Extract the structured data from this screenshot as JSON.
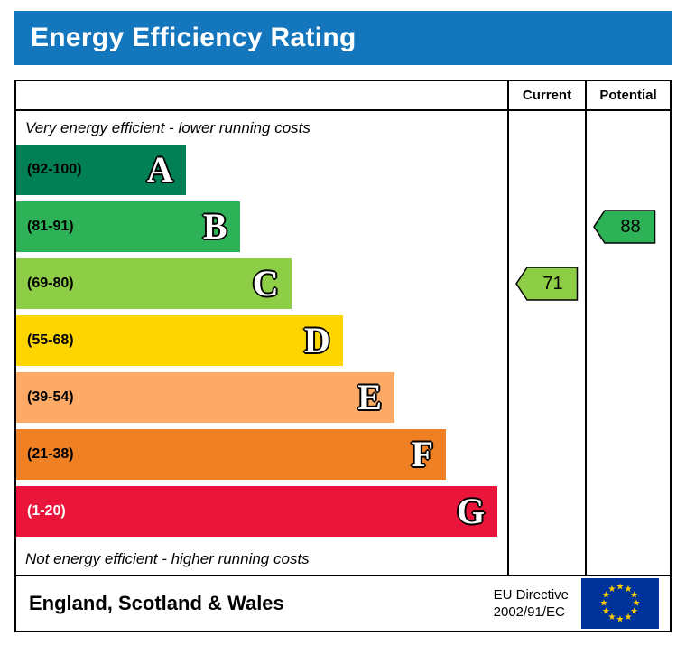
{
  "title": "Energy Efficiency Rating",
  "header": {
    "current_label": "Current",
    "potential_label": "Potential"
  },
  "notes": {
    "top": "Very energy efficient - lower running costs",
    "bottom": "Not energy efficient - higher running costs"
  },
  "chart_data": {
    "type": "bar",
    "title": "Energy Efficiency Rating",
    "categories": [
      "A",
      "B",
      "C",
      "D",
      "E",
      "F",
      "G"
    ],
    "bands": [
      {
        "letter": "A",
        "range": "(92-100)",
        "color": "#008054",
        "range_text_color": "#000000",
        "width_pct": 34.5
      },
      {
        "letter": "B",
        "range": "(81-91)",
        "color": "#2eb258",
        "range_text_color": "#000000",
        "width_pct": 45.5
      },
      {
        "letter": "C",
        "range": "(69-80)",
        "color": "#8dce46",
        "range_text_color": "#000000",
        "width_pct": 56
      },
      {
        "letter": "D",
        "range": "(55-68)",
        "color": "#ffd500",
        "range_text_color": "#000000",
        "width_pct": 66.5
      },
      {
        "letter": "E",
        "range": "(39-54)",
        "color": "#fcaa65",
        "range_text_color": "#000000",
        "width_pct": 77
      },
      {
        "letter": "F",
        "range": "(21-38)",
        "color": "#ef8023",
        "range_text_color": "#000000",
        "width_pct": 87.5
      },
      {
        "letter": "G",
        "range": "(1-20)",
        "color": "#e9153b",
        "range_text_color": "#ffffff",
        "width_pct": 98
      }
    ],
    "current": {
      "value": 71,
      "band": "C",
      "band_index": 2,
      "color": "#8dce46"
    },
    "potential": {
      "value": 88,
      "band": "B",
      "band_index": 1,
      "color": "#2eb258"
    },
    "annotations": [
      "Very energy efficient - lower running costs",
      "Not energy efficient - higher running costs"
    ],
    "legend_position": "none",
    "grid": false
  },
  "footer": {
    "region": "England, Scotland & Wales",
    "directive_line1": "EU Directive",
    "directive_line2": "2002/91/EC",
    "flag_colors": {
      "field": "#003399",
      "stars": "#ffcc00"
    }
  },
  "colors": {
    "banner_bg": "#1477bd",
    "banner_text": "#ffffff",
    "border": "#000000"
  }
}
